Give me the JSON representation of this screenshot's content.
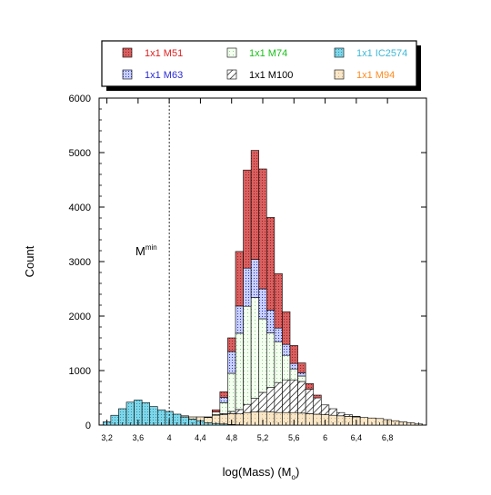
{
  "chart_data": {
    "type": "bar",
    "stacked": true,
    "xlabel": "log(Mass) (M",
    "xlabel_sub": "o",
    "xlabel_close": ")",
    "ylabel": "Count",
    "xlim": [
      3.1,
      7.3
    ],
    "ylim": [
      0,
      6000
    ],
    "xticks": [
      3.2,
      3.6,
      4.0,
      4.4,
      4.8,
      5.2,
      5.6,
      6.0,
      6.4,
      6.8
    ],
    "xtick_labels": [
      "3,2",
      "3,6",
      "4",
      "4,4",
      "4,8",
      "5,2",
      "5,6",
      "6",
      "6,4",
      "6,8"
    ],
    "yticks": [
      0,
      1000,
      2000,
      3000,
      4000,
      5000,
      6000
    ],
    "ytick_labels": [
      "0",
      "1000",
      "2000",
      "3000",
      "4000",
      "5000",
      "6000"
    ],
    "bin_width": 0.1,
    "x": [
      3.2,
      3.3,
      3.4,
      3.5,
      3.6,
      3.7,
      3.8,
      3.9,
      4.0,
      4.1,
      4.2,
      4.3,
      4.4,
      4.5,
      4.6,
      4.7,
      4.8,
      4.9,
      5.0,
      5.1,
      5.2,
      5.3,
      5.4,
      5.5,
      5.6,
      5.7,
      5.8,
      5.9,
      6.0,
      6.1,
      6.2,
      6.3,
      6.4,
      6.5,
      6.6,
      6.7,
      6.8,
      6.9,
      7.0,
      7.1,
      7.2
    ],
    "series": [
      {
        "name": "1x1 IC2574",
        "color": "#3cb8d8",
        "pattern": "dots",
        "values": [
          60,
          180,
          300,
          420,
          460,
          410,
          340,
          280,
          250,
          200,
          150,
          110,
          80,
          40,
          30,
          20,
          10,
          5,
          0,
          0,
          0,
          0,
          0,
          0,
          0,
          0,
          0,
          0,
          0,
          0,
          0,
          0,
          0,
          0,
          0,
          0,
          0,
          0,
          0,
          0,
          0
        ]
      },
      {
        "name": "1x1 M94",
        "color": "#ff8a1f",
        "pattern": "dots",
        "values": [
          0,
          0,
          0,
          0,
          0,
          0,
          0,
          0,
          0,
          0,
          20,
          40,
          70,
          100,
          150,
          170,
          200,
          200,
          230,
          240,
          250,
          240,
          230,
          230,
          230,
          220,
          210,
          200,
          190,
          180,
          170,
          160,
          150,
          140,
          130,
          120,
          100,
          80,
          60,
          40,
          20
        ]
      },
      {
        "name": "1x1 M100",
        "color": "#000000",
        "pattern": "hatch",
        "values": [
          0,
          0,
          0,
          0,
          0,
          0,
          0,
          0,
          0,
          0,
          0,
          0,
          0,
          0,
          10,
          20,
          40,
          80,
          150,
          250,
          350,
          450,
          550,
          600,
          600,
          580,
          450,
          300,
          180,
          120,
          60,
          30,
          10,
          0,
          0,
          0,
          0,
          0,
          0,
          0,
          0
        ]
      },
      {
        "name": "1x1 M74",
        "color": "#18c018",
        "pattern": "dots",
        "values": [
          0,
          0,
          0,
          0,
          0,
          0,
          0,
          0,
          0,
          0,
          0,
          0,
          0,
          0,
          50,
          200,
          700,
          1400,
          1800,
          1850,
          1350,
          1000,
          750,
          450,
          200,
          100,
          0,
          0,
          0,
          0,
          0,
          0,
          0,
          0,
          0,
          0,
          0,
          0,
          0,
          0,
          0
        ]
      },
      {
        "name": "1x1 M63",
        "color": "#2a2ad8",
        "pattern": "dots",
        "values": [
          0,
          0,
          0,
          0,
          0,
          0,
          0,
          0,
          0,
          0,
          0,
          0,
          0,
          0,
          0,
          100,
          400,
          500,
          700,
          700,
          550,
          420,
          250,
          200,
          100,
          60,
          0,
          0,
          0,
          0,
          0,
          0,
          0,
          0,
          0,
          0,
          0,
          0,
          0,
          0,
          0
        ]
      },
      {
        "name": "1x1 M51",
        "color": "#e02020",
        "pattern": "dots",
        "values": [
          0,
          0,
          0,
          0,
          0,
          0,
          0,
          0,
          0,
          0,
          0,
          0,
          0,
          10,
          40,
          100,
          250,
          1000,
          1800,
          2000,
          2200,
          1700,
          1000,
          600,
          330,
          180,
          100,
          50,
          0,
          0,
          0,
          0,
          0,
          0,
          0,
          0,
          0,
          0,
          0,
          0,
          0
        ]
      }
    ],
    "legend_order": [
      "1x1 M51",
      "1x1 M74",
      "1x1 IC2574",
      "1x1 M63",
      "1x1 M100",
      "1x1 M94"
    ],
    "legend_placement": "top",
    "annotation": {
      "text": "M",
      "sup": "min",
      "x": 4.0,
      "line_style": "dotted"
    },
    "grid": false
  }
}
